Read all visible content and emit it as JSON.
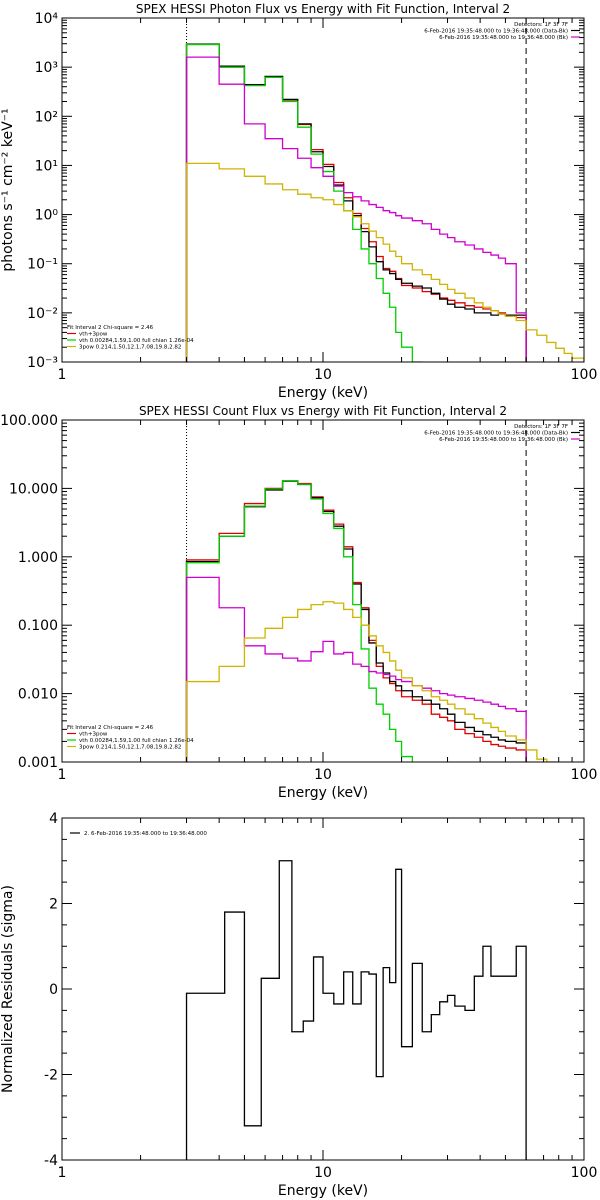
{
  "figure": {
    "colors": {
      "axis": "#000000",
      "black": "#000000",
      "red": "#e00000",
      "green": "#00d000",
      "magenta": "#d000d0",
      "yellow": "#d0b400"
    },
    "panels": [
      {
        "id": "photon",
        "title": "SPEX HESSI Photon Flux vs Energy with Fit Function, Interval 2",
        "xlabel": "Energy (keV)",
        "ylabel": "photons s⁻¹ cm⁻² keV⁻¹",
        "ylog": true,
        "xlim": [
          1,
          100
        ],
        "ylim": [
          0.001,
          10000
        ],
        "xticks": [
          {
            "v": 1,
            "label": "1"
          },
          {
            "v": 10,
            "label": "10"
          },
          {
            "v": 100,
            "label": "100"
          }
        ],
        "yticks": [
          {
            "v": 0.001,
            "label": "10⁻³"
          },
          {
            "v": 0.01,
            "label": "10⁻²"
          },
          {
            "v": 0.1,
            "label": "10⁻¹"
          },
          {
            "v": 1,
            "label": "10⁰"
          },
          {
            "v": 10,
            "label": "10¹"
          },
          {
            "v": 100,
            "label": "10²"
          },
          {
            "v": 1000,
            "label": "10³"
          },
          {
            "v": 10000,
            "label": "10⁴"
          }
        ],
        "vlines": [
          {
            "x": 3,
            "style": "dotted"
          },
          {
            "x": 60,
            "style": "dashed"
          }
        ],
        "legend_top": [
          "Detectors: 1F 3F 7F",
          "6-Feb-2016 19:35:48.000 to 19:36:48.000 (Data-Bk)",
          "6-Feb-2016 19:35:48.000 to 19:36:48.000 (Bk)"
        ],
        "legend_bottom": [
          "Fit Interval 2   Chi-square = 2.46",
          "vth+3pow",
          "vth 0.00284,1.59,1.00  full chian 1.26e-04",
          "3pow 0.214,1.50,12.1,7.08,19.8,2.82"
        ],
        "series": [
          {
            "name": "",
            "color": "red",
            "edges": [
              3,
              4,
              5,
              6,
              7,
              8,
              9,
              10,
              11,
              12,
              13,
              14,
              15,
              16,
              17,
              18,
              19,
              20,
              22,
              24,
              26,
              28,
              30,
              32,
              35,
              38,
              41,
              44,
              47,
              50,
              55,
              60
            ],
            "values": [
              2900,
              1000,
              430,
              640,
              215,
              68,
              21,
              10.5,
              4.5,
              2.2,
              1.05,
              0.52,
              0.28,
              0.14,
              0.08,
              0.07,
              0.05,
              0.036,
              0.032,
              0.027,
              0.024,
              0.02,
              0.018,
              0.016,
              0.014,
              0.013,
              0.012,
              0.011,
              0.01,
              0.009,
              0.008
            ]
          },
          {
            "name": "",
            "color": "black",
            "edges": [
              3,
              4,
              5,
              6,
              7,
              8,
              9,
              10,
              11,
              12,
              13,
              14,
              15,
              16,
              17,
              18,
              19,
              20,
              22,
              24,
              26,
              28,
              30,
              32,
              35,
              38,
              41,
              44,
              47,
              50,
              55,
              60
            ],
            "values": [
              2950,
              1050,
              440,
              650,
              220,
              70,
              19,
              9.5,
              4,
              1.9,
              0.95,
              0.45,
              0.22,
              0.11,
              0.075,
              0.063,
              0.048,
              0.04,
              0.035,
              0.032,
              0.025,
              0.019,
              0.015,
              0.013,
              0.012,
              0.01,
              0.01,
              0.009,
              0.0095,
              0.009,
              0.009
            ]
          },
          {
            "name": "",
            "color": "green",
            "edges": [
              3,
              4,
              5,
              6,
              7,
              8,
              9,
              10,
              11,
              12,
              13,
              14,
              15,
              16,
              17,
              18,
              19,
              20,
              22,
              24
            ],
            "values": [
              2900,
              1000,
              420,
              620,
              200,
              60,
              17,
              7.5,
              3,
              1.2,
              0.5,
              0.2,
              0.1,
              0.05,
              0.025,
              0.013,
              0.004,
              0.002,
              0.0009
            ]
          },
          {
            "name": "",
            "color": "magenta",
            "edges": [
              3,
              4,
              5,
              6,
              7,
              8,
              9,
              10,
              11,
              12,
              13,
              14,
              15,
              16,
              17,
              18,
              19,
              20,
              22,
              24,
              26,
              28,
              30,
              32,
              35,
              38,
              41,
              44,
              47,
              50,
              55,
              60
            ],
            "values": [
              1600,
              450,
              70,
              35,
              22,
              14,
              9,
              6,
              3.8,
              2.8,
              2.3,
              1.9,
              1.6,
              1.4,
              1.2,
              1.1,
              0.95,
              0.85,
              0.75,
              0.65,
              0.5,
              0.4,
              0.34,
              0.28,
              0.24,
              0.2,
              0.17,
              0.15,
              0.13,
              0.1,
              0.01
            ]
          },
          {
            "name": "",
            "color": "yellow",
            "edges": [
              3,
              4,
              5,
              6,
              7,
              8,
              9,
              10,
              11,
              12,
              13,
              14,
              15,
              16,
              17,
              18,
              19,
              20,
              22,
              24,
              26,
              28,
              30,
              32,
              35,
              38,
              41,
              44,
              47,
              50,
              55,
              60,
              66,
              72,
              78,
              84,
              90,
              100
            ],
            "values": [
              11,
              8.5,
              6,
              4.2,
              3.2,
              2.6,
              2.2,
              2,
              1.6,
              1.2,
              0.9,
              0.65,
              0.46,
              0.34,
              0.25,
              0.18,
              0.14,
              0.1,
              0.075,
              0.06,
              0.048,
              0.038,
              0.03,
              0.025,
              0.02,
              0.016,
              0.013,
              0.011,
              0.0095,
              0.0085,
              0.007,
              0.0045,
              0.0035,
              0.0025,
              0.0019,
              0.0015,
              0.0012
            ]
          }
        ]
      },
      {
        "id": "count",
        "title": "SPEX HESSI Count Flux vs Energy with Fit Function, Interval 2",
        "xlabel": "Energy (keV)",
        "ylabel": "",
        "ylog": true,
        "xlim": [
          1,
          100
        ],
        "ylim": [
          0.001,
          100
        ],
        "xticks": [
          {
            "v": 1,
            "label": "1"
          },
          {
            "v": 10,
            "label": "10"
          },
          {
            "v": 100,
            "label": "100"
          }
        ],
        "yticks": [
          {
            "v": 0.001,
            "label": "0.001"
          },
          {
            "v": 0.01,
            "label": "0.010"
          },
          {
            "v": 0.1,
            "label": "0.100"
          },
          {
            "v": 1,
            "label": "1.000"
          },
          {
            "v": 10,
            "label": "10.000"
          },
          {
            "v": 100,
            "label": "100.000"
          }
        ],
        "vlines": [
          {
            "x": 3,
            "style": "dotted"
          },
          {
            "x": 60,
            "style": "dashed"
          }
        ],
        "legend_top": [
          "Detectors: 1F 3F 7F",
          "6-Feb-2016 19:35:48.000 to 19:36:48.000 (Data-Bk)",
          "6-Feb-2016 19:35:48.000 to 19:36:48.000 (Bk)"
        ],
        "legend_bottom": [
          "Fit Interval 2   Chi-square = 2.46",
          "vth+3pow",
          "vth 0.00284,1.59,1.00  full chian 1.26e-04",
          "3pow 0.214,1.50,12.1,7.08,19.8,2.82"
        ],
        "series": [
          {
            "name": "",
            "color": "red",
            "edges": [
              3,
              4,
              5,
              6,
              7,
              8,
              9,
              10,
              11,
              12,
              13,
              14,
              15,
              16,
              17,
              18,
              19,
              20,
              22,
              24,
              26,
              28,
              30,
              32,
              35,
              38,
              41,
              44,
              47,
              50,
              55,
              60
            ],
            "values": [
              0.9,
              2.2,
              6,
              10,
              13,
              11.8,
              7.5,
              4.8,
              3,
              1.4,
              0.42,
              0.18,
              0.06,
              0.025,
              0.017,
              0.014,
              0.011,
              0.009,
              0.008,
              0.007,
              0.005,
              0.0045,
              0.004,
              0.003,
              0.0026,
              0.0023,
              0.002,
              0.0018,
              0.0017,
              0.0016,
              0.0015
            ]
          },
          {
            "name": "",
            "color": "black",
            "edges": [
              3,
              4,
              5,
              6,
              7,
              8,
              9,
              10,
              11,
              12,
              13,
              14,
              15,
              16,
              17,
              18,
              19,
              20,
              22,
              24,
              26,
              28,
              30,
              32,
              35,
              38,
              41,
              44,
              47,
              50,
              55,
              60
            ],
            "values": [
              0.85,
              2,
              5.4,
              9.5,
              12.8,
              11.4,
              7.3,
              4.6,
              2.8,
              1.3,
              0.4,
              0.17,
              0.055,
              0.028,
              0.02,
              0.015,
              0.013,
              0.011,
              0.009,
              0.008,
              0.007,
              0.006,
              0.005,
              0.0038,
              0.0032,
              0.0028,
              0.0025,
              0.0023,
              0.0021,
              0.002,
              0.0019
            ]
          },
          {
            "name": "",
            "color": "green",
            "edges": [
              3,
              4,
              5,
              6,
              7,
              8,
              9,
              10,
              11,
              12,
              13,
              14,
              15,
              16,
              17,
              18,
              19,
              20,
              22
            ],
            "values": [
              0.82,
              2,
              5.5,
              9.8,
              13,
              11.5,
              7,
              4.3,
              2.6,
              1,
              0.2,
              0.045,
              0.012,
              0.007,
              0.005,
              0.003,
              0.002,
              0.0012
            ]
          },
          {
            "name": "",
            "color": "magenta",
            "edges": [
              3,
              4,
              5,
              6,
              7,
              8,
              9,
              10,
              11,
              12,
              13,
              14,
              15,
              16,
              17,
              18,
              19,
              20,
              22,
              24,
              26,
              28,
              30,
              32,
              35,
              38,
              41,
              44,
              47,
              50,
              55,
              60
            ],
            "values": [
              0.5,
              0.18,
              0.05,
              0.038,
              0.033,
              0.03,
              0.041,
              0.058,
              0.038,
              0.04,
              0.027,
              0.025,
              0.021,
              0.02,
              0.019,
              0.018,
              0.016,
              0.015,
              0.013,
              0.012,
              0.011,
              0.01,
              0.0095,
              0.009,
              0.0085,
              0.008,
              0.0075,
              0.007,
              0.0065,
              0.006,
              0.0055
            ]
          },
          {
            "name": "",
            "color": "yellow",
            "edges": [
              3,
              4,
              5,
              6,
              7,
              8,
              9,
              10,
              11,
              12,
              13,
              14,
              15,
              16,
              17,
              18,
              19,
              20,
              22,
              24,
              26,
              28,
              30,
              32,
              35,
              38,
              41,
              44,
              47,
              50,
              55,
              60,
              66,
              72,
              78
            ],
            "values": [
              0.015,
              0.025,
              0.065,
              0.09,
              0.13,
              0.17,
              0.2,
              0.22,
              0.21,
              0.17,
              0.13,
              0.1,
              0.07,
              0.05,
              0.04,
              0.03,
              0.022,
              0.017,
              0.013,
              0.011,
              0.009,
              0.008,
              0.007,
              0.006,
              0.005,
              0.0043,
              0.0037,
              0.0032,
              0.0028,
              0.0024,
              0.0021,
              0.0015,
              0.0011,
              0.0009
            ]
          }
        ]
      },
      {
        "id": "residuals",
        "title": "",
        "xlabel": "Energy (keV)",
        "ylabel": "Normalized Residuals (sigma)",
        "ylog": false,
        "xlim": [
          1,
          100
        ],
        "ylim": [
          -4,
          4
        ],
        "xticks": [
          {
            "v": 1,
            "label": "1"
          },
          {
            "v": 10,
            "label": "10"
          },
          {
            "v": 100,
            "label": "100"
          }
        ],
        "yticks": [
          {
            "v": -4,
            "label": "-4"
          },
          {
            "v": -2,
            "label": "-2"
          },
          {
            "v": 0,
            "label": "0"
          },
          {
            "v": 2,
            "label": "2"
          },
          {
            "v": 4,
            "label": "4"
          }
        ],
        "vlines": [],
        "legend_top_left": "2.  6-Feb-2016 19:35:48.000 to 19:36:48.000",
        "series": [
          {
            "name": "",
            "color": "black",
            "drop_to_bottom": true,
            "edges": [
              3,
              3.6,
              4.2,
              5,
              5.8,
              6.8,
              7.6,
              8.4,
              9.2,
              10,
              11,
              12,
              13,
              14,
              15,
              16,
              17,
              18,
              19,
              20,
              22,
              24,
              26,
              28,
              30,
              32,
              35,
              38,
              41,
              44,
              47,
              50,
              55,
              60
            ],
            "values": [
              -0.1,
              -0.1,
              1.8,
              -3.2,
              0.25,
              3,
              -1,
              -0.75,
              0.75,
              -0.1,
              -0.35,
              0.4,
              -0.35,
              0.4,
              0.35,
              -2.05,
              0.5,
              0.15,
              2.8,
              -1.35,
              0.6,
              -1,
              -0.6,
              -0.3,
              -0.15,
              -0.4,
              -0.5,
              0.3,
              1,
              0.3,
              0.3,
              0.3,
              1
            ]
          }
        ]
      }
    ]
  }
}
